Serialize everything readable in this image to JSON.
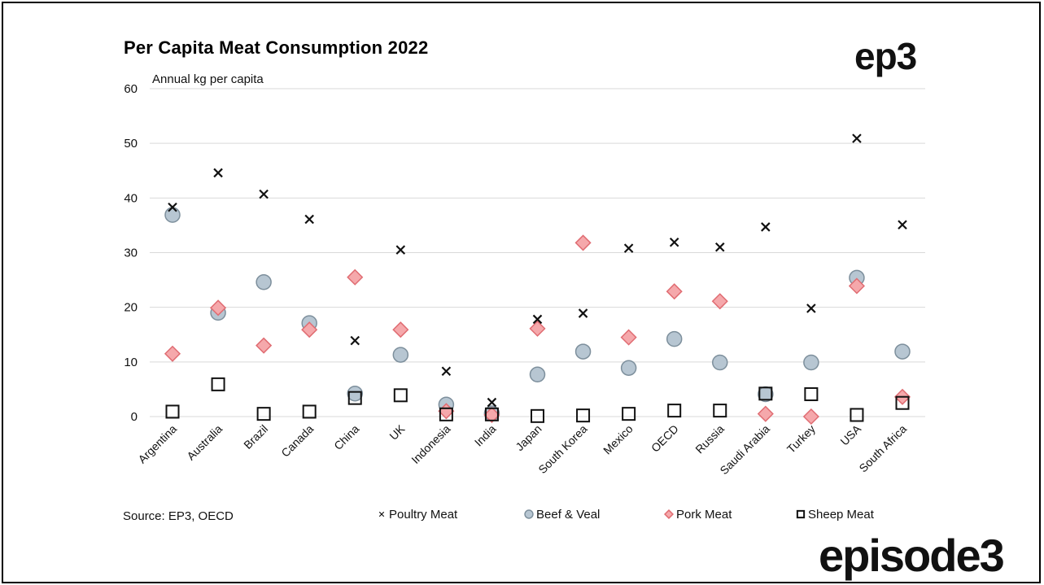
{
  "title": "Per Capita Meat Consumption 2022",
  "brand": {
    "small": "ep3",
    "large": "episode3"
  },
  "source": "Source: EP3, OECD",
  "colors": {
    "poultry": "#111111",
    "beef_fill": "#b7c6d2",
    "beef_stroke": "#7d8f9c",
    "pork_fill": "#f5a8ab",
    "pork_stroke": "#e06c72",
    "sheep": "#111111",
    "grid": "#d9d9d9"
  },
  "chart_data": {
    "type": "scatter",
    "ylabel": "Annual kg per capita",
    "ylim": [
      0,
      60
    ],
    "yticks": [
      0,
      10,
      20,
      30,
      40,
      50,
      60
    ],
    "grid": true,
    "legend": "bottom",
    "categories": [
      "Argentina",
      "Australia",
      "Brazil",
      "Canada",
      "China",
      "UK",
      "Indonesia",
      "India",
      "Japan",
      "South Korea",
      "Mexico",
      "OECD",
      "Russia",
      "Saudi Arabia",
      "Turkey",
      "USA",
      "South Africa"
    ],
    "series": [
      {
        "name": "Poultry Meat",
        "marker": "x",
        "values": [
          38.3,
          44.6,
          40.7,
          36.1,
          13.9,
          30.5,
          8.3,
          2.6,
          17.8,
          18.9,
          30.8,
          31.9,
          31.0,
          34.7,
          19.8,
          50.9,
          35.1
        ]
      },
      {
        "name": "Beef & Veal",
        "marker": "circle",
        "values": [
          36.9,
          19.0,
          24.6,
          17.1,
          4.2,
          11.3,
          2.2,
          0.6,
          7.7,
          11.9,
          8.9,
          14.2,
          9.9,
          4.1,
          9.9,
          25.4,
          11.9
        ]
      },
      {
        "name": "Pork Meat",
        "marker": "diamond",
        "values": [
          11.5,
          19.9,
          13.0,
          15.9,
          25.5,
          15.9,
          1.0,
          0.3,
          16.1,
          31.8,
          14.5,
          22.9,
          21.1,
          0.5,
          0.0,
          23.9,
          3.6
        ]
      },
      {
        "name": "Sheep Meat",
        "marker": "square",
        "values": [
          0.9,
          5.9,
          0.5,
          0.9,
          3.4,
          3.9,
          0.4,
          0.4,
          0.1,
          0.2,
          0.5,
          1.1,
          1.1,
          4.2,
          4.1,
          0.3,
          2.5
        ]
      }
    ]
  }
}
